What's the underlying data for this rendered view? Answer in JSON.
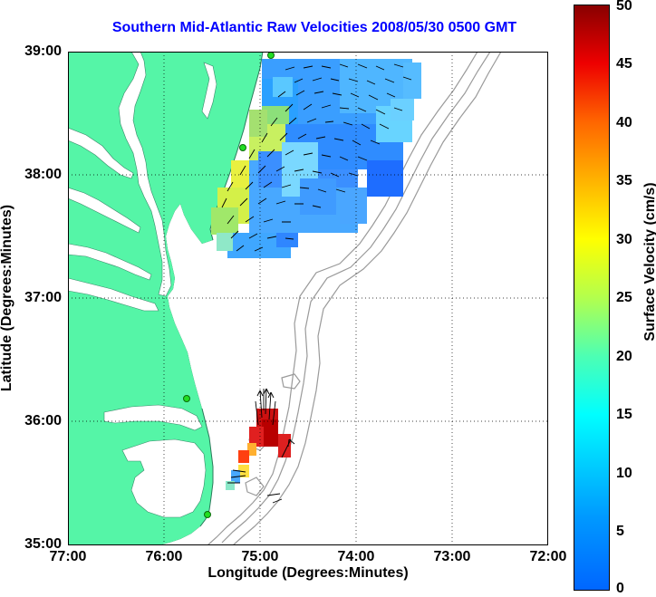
{
  "title": "Southern Mid-Atlantic Raw Velocities 2008/05/30 0500 GMT",
  "axes": {
    "xlabel": "Longitude (Degrees:Minutes)",
    "ylabel": "Latitude (Degrees:Minutes)",
    "x_ticks": [
      "77:00",
      "76:00",
      "75:00",
      "74:00",
      "73:00",
      "72:00"
    ],
    "y_ticks": [
      "39:00",
      "38:00",
      "37:00",
      "36:00",
      "35:00"
    ],
    "xlim": [
      -77,
      -72
    ],
    "ylim": [
      35,
      39
    ],
    "grid": "dotted"
  },
  "colorbar": {
    "label": "Surface Velocity (cm/s)",
    "ticks": [
      "50",
      "45",
      "40",
      "35",
      "30",
      "25",
      "20",
      "15",
      "10",
      "5",
      "0"
    ],
    "range": [
      0,
      50
    ],
    "colormap": "jet"
  },
  "colors": {
    "title": "#0000ff",
    "land": "#55f5a7",
    "water": "#ffffff",
    "isobath": "#9a9a9a",
    "station": "#22dd22",
    "arrow": "#000000"
  },
  "features": {
    "land": "land-icon",
    "station": "station-marker-icon",
    "arrow": "velocity-arrow-icon"
  }
}
